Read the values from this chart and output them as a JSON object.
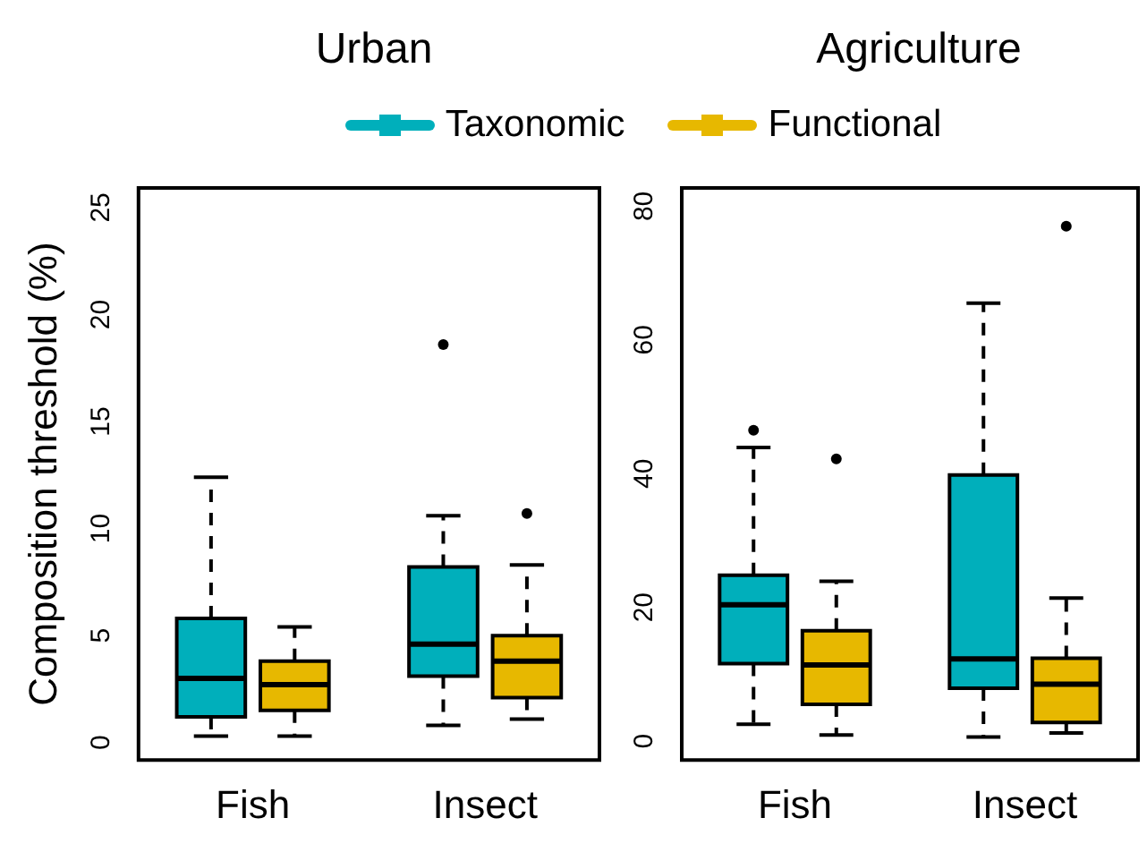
{
  "chart_data": [
    {
      "type": "box",
      "title": "Urban",
      "ylabel": "Composition threshold (%)",
      "categories": [
        "Fish",
        "Insect"
      ],
      "ylim": [
        -0.9,
        26
      ],
      "yticks": [
        0,
        5,
        10,
        15,
        20,
        25
      ],
      "grid": false,
      "legend": "top",
      "series": [
        {
          "name": "Taxonomic",
          "color": "#00afbb",
          "boxes": [
            {
              "low": 0.3,
              "q1": 1.2,
              "median": 3.0,
              "q3": 5.8,
              "high": 12.4
            },
            {
              "low": 0.8,
              "q1": 3.1,
              "median": 4.6,
              "q3": 8.2,
              "high": 10.6,
              "outliers": [
                18.6
              ]
            }
          ]
        },
        {
          "name": "Functional",
          "color": "#e7b800",
          "boxes": [
            {
              "low": 0.3,
              "q1": 1.5,
              "median": 2.7,
              "q3": 3.8,
              "high": 5.4
            },
            {
              "low": 1.1,
              "q1": 2.1,
              "median": 3.8,
              "q3": 5.0,
              "high": 8.3,
              "outliers": [
                10.7
              ]
            }
          ]
        }
      ]
    },
    {
      "type": "box",
      "title": "Agriculture",
      "categories": [
        "Fish",
        "Insect"
      ],
      "ylim": [
        -3.1,
        83
      ],
      "yticks": [
        0,
        20,
        40,
        60,
        80
      ],
      "grid": false,
      "series": [
        {
          "color": "#00afbb",
          "boxes": [
            {
              "low": 2.5,
              "q1": 11.6,
              "median": 20.4,
              "q3": 24.8,
              "high": 43.9,
              "outliers": [
                46.5
              ]
            },
            {
              "low": 0.6,
              "q1": 7.9,
              "median": 12.3,
              "q3": 39.8,
              "high": 65.5
            }
          ]
        },
        {
          "color": "#e7b800",
          "boxes": [
            {
              "low": 0.9,
              "q1": 5.5,
              "median": 11.4,
              "q3": 16.5,
              "high": 23.9,
              "outliers": [
                42.2
              ]
            },
            {
              "low": 1.2,
              "q1": 2.8,
              "median": 8.5,
              "q3": 12.4,
              "high": 21.4,
              "outliers": [
                77.0
              ]
            }
          ]
        }
      ]
    }
  ]
}
